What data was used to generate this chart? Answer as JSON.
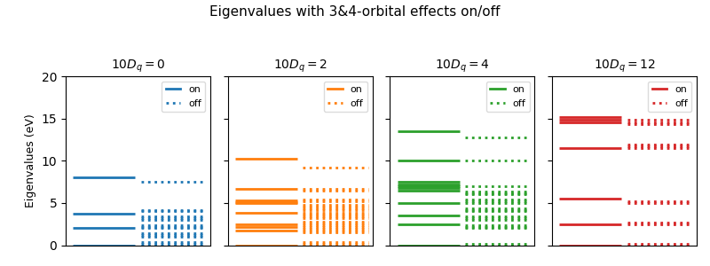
{
  "title": "Eigenvalues with 3&4-orbital effects on/off",
  "ylabel": "Eigenvalues (eV)",
  "ylim": [
    0,
    20
  ],
  "panels": [
    {
      "title": "$10D_q = 0$",
      "color": "#1f77b4",
      "on_values": [
        0.0,
        2.0,
        3.7,
        8.0
      ],
      "off_values": [
        0.0,
        0.2,
        0.4,
        1.0,
        1.2,
        1.4,
        2.0,
        2.2,
        2.4,
        3.0,
        3.2,
        3.4,
        4.0,
        4.2,
        7.5
      ]
    },
    {
      "title": "$10D_q = 2$",
      "color": "#ff7f0e",
      "on_values": [
        0.0,
        1.7,
        2.2,
        2.5,
        3.8,
        5.0,
        5.15,
        5.3,
        6.7,
        10.2
      ],
      "off_values": [
        0.0,
        0.2,
        0.4,
        1.5,
        1.7,
        1.9,
        2.2,
        2.4,
        2.6,
        2.8,
        3.2,
        3.4,
        3.6,
        3.8,
        4.2,
        4.4,
        4.6,
        4.8,
        5.2,
        5.4,
        6.5,
        6.7,
        9.2
      ]
    },
    {
      "title": "$10D_q = 4$",
      "color": "#2ca02c",
      "on_values": [
        0.0,
        2.5,
        3.5,
        5.0,
        6.5,
        6.8,
        7.0,
        7.2,
        7.5,
        10.0,
        13.5
      ],
      "off_values": [
        0.0,
        0.2,
        2.0,
        2.2,
        2.4,
        3.0,
        3.2,
        3.4,
        4.0,
        4.2,
        4.4,
        5.0,
        5.2,
        5.4,
        6.0,
        6.2,
        6.4,
        7.0,
        10.0,
        12.8
      ]
    },
    {
      "title": "$10D_q = 12$",
      "color": "#d62728",
      "on_values": [
        0.0,
        2.5,
        5.5,
        11.5,
        14.6,
        14.9,
        15.2
      ],
      "off_values": [
        0.0,
        0.2,
        2.5,
        2.7,
        5.0,
        5.2,
        11.5,
        11.7,
        11.9,
        14.3,
        14.6,
        14.9
      ]
    }
  ],
  "line_xspan_on": [
    0.05,
    0.48
  ],
  "line_xspan_off": [
    0.52,
    0.97
  ],
  "linewidth": 2.0,
  "figsize": [
    8.0,
    3.0
  ],
  "dpi": 100,
  "title_fontsize": 11,
  "subtitle_fontsize": 10,
  "ylabel_fontsize": 9,
  "legend_fontsize": 8
}
